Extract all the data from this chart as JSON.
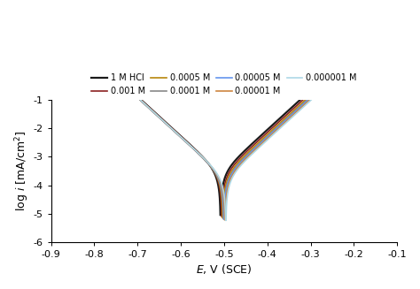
{
  "xlabel": "E, V (SCE)",
  "xlim": [
    -0.9,
    -0.1
  ],
  "ylim": [
    -6,
    -1
  ],
  "xticks": [
    -0.9,
    -0.8,
    -0.7,
    -0.6,
    -0.5,
    -0.4,
    -0.3,
    -0.2,
    -0.1
  ],
  "yticks": [
    -6,
    -5,
    -4,
    -3,
    -2,
    -1
  ],
  "series": [
    {
      "label": "1 M HCl",
      "color": "#1a1a1a",
      "lw": 1.6,
      "E_corr": -0.508,
      "log_icorr": -3.55,
      "ba": 0.072,
      "bc": 0.072,
      "E_cat": -0.8,
      "E_ano": -0.195
    },
    {
      "label": "0.001 M",
      "color": "#8B2020",
      "lw": 1.2,
      "E_corr": -0.505,
      "log_icorr": -3.6,
      "ba": 0.072,
      "bc": 0.072,
      "E_cat": -0.8,
      "E_ano": -0.195
    },
    {
      "label": "0.0005 M",
      "color": "#B8860B",
      "lw": 1.2,
      "E_corr": -0.503,
      "log_icorr": -3.65,
      "ba": 0.072,
      "bc": 0.072,
      "E_cat": -0.795,
      "E_ano": -0.195
    },
    {
      "label": "0.0001 M",
      "color": "#888888",
      "lw": 1.2,
      "E_corr": -0.501,
      "log_icorr": -3.68,
      "ba": 0.072,
      "bc": 0.072,
      "E_cat": -0.795,
      "E_ano": -0.195
    },
    {
      "label": "0.00005 M",
      "color": "#6495ED",
      "lw": 1.2,
      "E_corr": -0.5,
      "log_icorr": -3.7,
      "ba": 0.072,
      "bc": 0.072,
      "E_cat": -0.795,
      "E_ano": -0.195
    },
    {
      "label": "0.00001 M",
      "color": "#CD853F",
      "lw": 1.2,
      "E_corr": -0.498,
      "log_icorr": -3.72,
      "ba": 0.072,
      "bc": 0.072,
      "E_cat": -0.79,
      "E_ano": -0.195
    },
    {
      "label": "0.000001 M",
      "color": "#ADD8E6",
      "lw": 1.2,
      "E_corr": -0.496,
      "log_icorr": -3.74,
      "ba": 0.072,
      "bc": 0.072,
      "E_cat": -0.79,
      "E_ano": -0.195
    }
  ],
  "figsize": [
    4.74,
    3.27
  ],
  "dpi": 100
}
